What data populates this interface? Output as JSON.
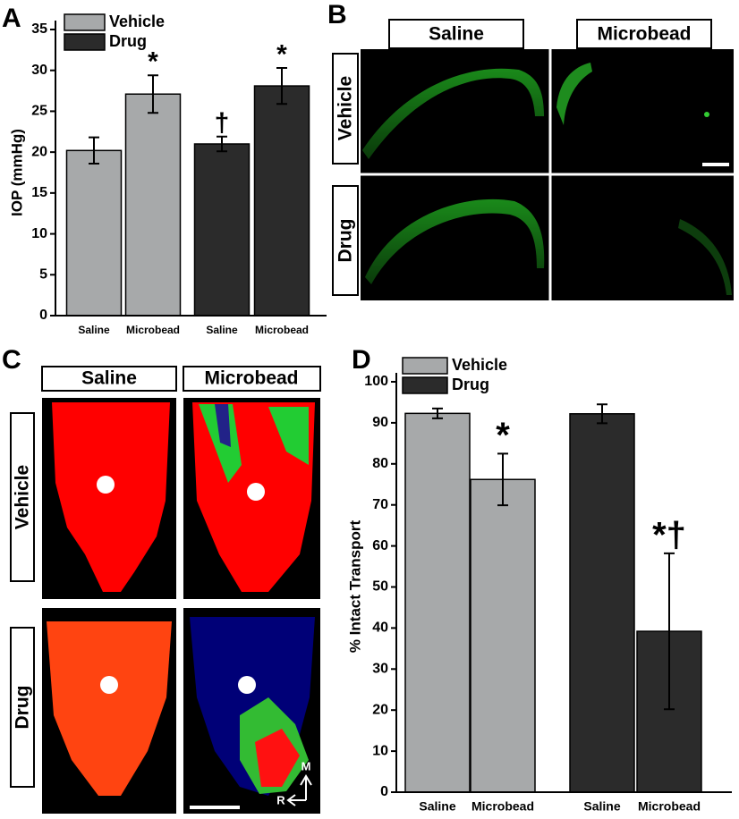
{
  "panel_labels": [
    "A",
    "B",
    "C",
    "D"
  ],
  "chart_data": [
    {
      "type": "bar",
      "ylabel": "IOP (mmHg)",
      "categories": [
        "Saline",
        "Microbead",
        "Saline",
        "Microbead"
      ],
      "series": [
        {
          "name": "Vehicle",
          "color": "#a7a9aa",
          "values": [
            20.2,
            27.1,
            null,
            null
          ],
          "errors": [
            1.6,
            2.3,
            null,
            null
          ],
          "markers": [
            null,
            "*",
            null,
            null
          ]
        },
        {
          "name": "Drug",
          "color": "#2b2b2b",
          "values": [
            null,
            null,
            21.0,
            28.1
          ],
          "errors": [
            null,
            null,
            0.9,
            2.2
          ],
          "markers": [
            null,
            null,
            "†",
            "*"
          ]
        }
      ],
      "ylim": [
        0,
        35
      ],
      "yticks": [
        0,
        5,
        10,
        15,
        20,
        25,
        30,
        35
      ],
      "legend": "upper left"
    },
    {
      "type": "bar",
      "ylabel": "% Intact Transport",
      "categories": [
        "Saline",
        "Microbead",
        "Saline",
        "Microbead"
      ],
      "series": [
        {
          "name": "Vehicle",
          "color": "#a7a9aa",
          "values": [
            92.3,
            76.2,
            null,
            null
          ],
          "errors": [
            1.2,
            6.3,
            null,
            null
          ],
          "markers": [
            null,
            "*",
            null,
            null
          ]
        },
        {
          "name": "Drug",
          "color": "#2b2b2b",
          "values": [
            null,
            null,
            92.2,
            39.2
          ],
          "errors": [
            null,
            null,
            2.3,
            19.0
          ],
          "markers": [
            null,
            null,
            null,
            "*†"
          ]
        }
      ],
      "ylim": [
        0,
        100
      ],
      "yticks": [
        0,
        10,
        20,
        30,
        40,
        50,
        60,
        70,
        80,
        90,
        100
      ],
      "legend": "upper left"
    }
  ],
  "image_panels": [
    {
      "columns": [
        "Saline",
        "Microbead"
      ],
      "rows": [
        "Vehicle",
        "Drug"
      ]
    },
    {
      "columns": [
        "Saline",
        "Microbead"
      ],
      "rows": [
        "Vehicle",
        "Drug"
      ],
      "orientation_labels": [
        "M",
        "R"
      ]
    }
  ]
}
